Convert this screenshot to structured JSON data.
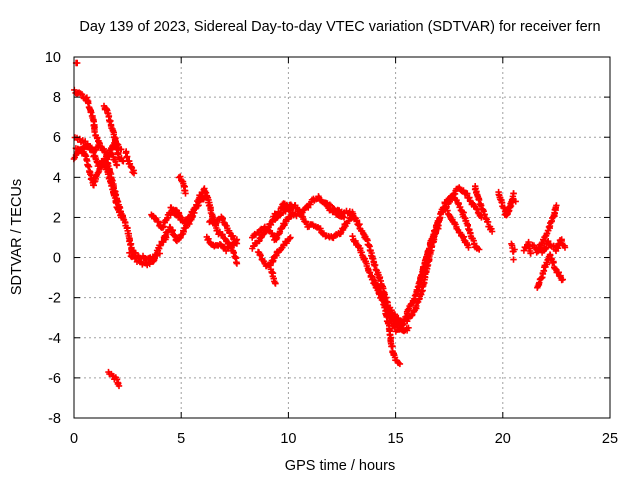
{
  "chart_data": {
    "type": "scatter",
    "title": "Day 139 of 2023, Sidereal Day-to-day VTEC variation (SDTVAR) for receiver fern",
    "xlabel": "GPS time / hours",
    "ylabel": "SDTVAR / TECUs",
    "xlim": [
      0,
      25
    ],
    "ylim": [
      -8,
      10
    ],
    "xticks": [
      0,
      5,
      10,
      15,
      20,
      25
    ],
    "yticks": [
      -8,
      -6,
      -4,
      -2,
      0,
      2,
      4,
      6,
      8,
      10
    ],
    "grid": true,
    "marker": "+",
    "color": "#ff0000",
    "tracks": [
      [
        [
          0.0,
          5.0
        ],
        [
          0.3,
          5.4
        ],
        [
          0.6,
          5.6
        ],
        [
          0.9,
          5.3
        ],
        [
          1.2,
          5.6
        ],
        [
          1.5,
          5.2
        ],
        [
          1.8,
          5.1
        ],
        [
          2.0,
          4.6
        ]
      ],
      [
        [
          0.05,
          5.9
        ],
        [
          0.4,
          5.8
        ],
        [
          0.8,
          5.5
        ],
        [
          1.1,
          4.6
        ],
        [
          1.5,
          4.9
        ],
        [
          1.9,
          5.8
        ],
        [
          2.2,
          5.4
        ]
      ],
      [
        [
          0.1,
          5.4
        ],
        [
          0.5,
          5.2
        ],
        [
          0.7,
          4.4
        ],
        [
          0.9,
          3.6
        ],
        [
          1.1,
          4.2
        ],
        [
          1.4,
          4.8
        ],
        [
          1.7,
          3.8
        ],
        [
          2.0,
          2.6
        ],
        [
          2.2,
          2.0
        ]
      ],
      [
        [
          0.0,
          8.3
        ],
        [
          0.3,
          8.1
        ],
        [
          0.6,
          7.9
        ],
        [
          0.9,
          6.9
        ],
        [
          1.0,
          6.1
        ],
        [
          1.2,
          5.6
        ]
      ],
      [
        [
          1.4,
          7.6
        ],
        [
          1.6,
          7.1
        ],
        [
          1.9,
          6.0
        ],
        [
          2.1,
          5.0
        ],
        [
          2.3,
          4.8
        ]
      ],
      [
        [
          2.4,
          5.3
        ],
        [
          2.6,
          4.6
        ],
        [
          2.8,
          4.2
        ]
      ],
      [
        [
          1.5,
          5.0
        ],
        [
          1.7,
          4.2
        ],
        [
          1.9,
          3.3
        ],
        [
          2.1,
          2.6
        ],
        [
          2.3,
          2.0
        ],
        [
          2.5,
          1.4
        ],
        [
          2.6,
          0.8
        ],
        [
          2.7,
          0.4
        ],
        [
          2.9,
          0.1
        ],
        [
          3.2,
          0.0
        ],
        [
          3.5,
          -0.1
        ],
        [
          3.8,
          0.1
        ],
        [
          4.0,
          0.2
        ]
      ],
      [
        [
          2.6,
          0.2
        ],
        [
          3.0,
          -0.2
        ],
        [
          3.4,
          -0.3
        ],
        [
          3.7,
          -0.2
        ],
        [
          4.0,
          0.6
        ],
        [
          4.3,
          1.0
        ]
      ],
      [
        [
          3.6,
          2.1
        ],
        [
          3.8,
          1.9
        ],
        [
          4.1,
          1.5
        ],
        [
          4.4,
          2.1
        ],
        [
          4.7,
          2.4
        ],
        [
          5.0,
          2.0
        ]
      ],
      [
        [
          4.2,
          1.0
        ],
        [
          4.5,
          1.5
        ],
        [
          4.8,
          0.8
        ],
        [
          5.1,
          1.3
        ],
        [
          5.4,
          1.8
        ],
        [
          5.6,
          2.3
        ],
        [
          5.9,
          2.8
        ],
        [
          6.1,
          3.0
        ]
      ],
      [
        [
          4.9,
          4.0
        ],
        [
          5.1,
          3.8
        ],
        [
          5.2,
          3.2
        ]
      ],
      [
        [
          4.5,
          2.5
        ],
        [
          4.9,
          2.0
        ],
        [
          5.2,
          1.8
        ],
        [
          5.6,
          2.4
        ],
        [
          5.9,
          3.1
        ],
        [
          6.1,
          3.4
        ],
        [
          6.3,
          2.7
        ],
        [
          6.5,
          1.9
        ],
        [
          6.7,
          1.3
        ],
        [
          7.0,
          1.0
        ],
        [
          7.3,
          0.6
        ],
        [
          7.5,
          0.1
        ],
        [
          7.6,
          -0.3
        ]
      ],
      [
        [
          6.3,
          1.8
        ],
        [
          6.6,
          1.7
        ],
        [
          6.9,
          2.0
        ],
        [
          7.1,
          1.5
        ],
        [
          7.4,
          1.0
        ],
        [
          7.6,
          0.7
        ]
      ],
      [
        [
          6.2,
          1.0
        ],
        [
          6.5,
          0.6
        ],
        [
          6.8,
          0.7
        ],
        [
          7.1,
          0.4
        ],
        [
          7.4,
          0.7
        ],
        [
          7.6,
          0.9
        ]
      ],
      [
        [
          1.6,
          -5.8
        ],
        [
          1.8,
          -5.9
        ],
        [
          2.0,
          -6.1
        ],
        [
          2.1,
          -6.4
        ]
      ],
      [
        [
          8.3,
          0.5
        ],
        [
          8.6,
          0.8
        ],
        [
          8.9,
          1.3
        ],
        [
          9.2,
          1.7
        ],
        [
          9.5,
          2.1
        ],
        [
          9.8,
          2.3
        ],
        [
          10.1,
          2.6
        ],
        [
          10.4,
          2.5
        ],
        [
          10.6,
          2.1
        ],
        [
          10.9,
          1.6
        ],
        [
          11.2,
          1.6
        ],
        [
          11.5,
          1.4
        ],
        [
          11.8,
          1.0
        ],
        [
          12.1,
          1.0
        ],
        [
          12.4,
          1.2
        ],
        [
          12.7,
          1.7
        ],
        [
          13.0,
          2.0
        ]
      ],
      [
        [
          8.3,
          1.0
        ],
        [
          8.6,
          1.2
        ],
        [
          8.9,
          1.5
        ],
        [
          9.2,
          1.2
        ],
        [
          9.4,
          0.9
        ],
        [
          9.6,
          1.3
        ],
        [
          9.9,
          1.9
        ],
        [
          10.2,
          2.2
        ],
        [
          10.5,
          2.1
        ],
        [
          10.8,
          2.4
        ],
        [
          11.1,
          2.8
        ],
        [
          11.4,
          3.0
        ],
        [
          11.7,
          2.7
        ],
        [
          12.0,
          2.3
        ],
        [
          12.3,
          2.2
        ],
        [
          12.6,
          2.0
        ]
      ],
      [
        [
          8.6,
          0.3
        ],
        [
          8.8,
          -0.2
        ],
        [
          9.0,
          -0.5
        ],
        [
          9.2,
          -0.3
        ],
        [
          9.5,
          0.3
        ],
        [
          9.8,
          0.7
        ],
        [
          10.1,
          1.0
        ]
      ],
      [
        [
          9.3,
          2.1
        ],
        [
          9.6,
          2.3
        ],
        [
          9.8,
          2.7
        ],
        [
          10.0,
          2.5
        ],
        [
          10.2,
          2.2
        ]
      ],
      [
        [
          9.2,
          -0.6
        ],
        [
          9.3,
          -1.0
        ],
        [
          9.4,
          -1.3
        ]
      ],
      [
        [
          11.7,
          2.8
        ],
        [
          12.0,
          2.5
        ],
        [
          12.3,
          2.3
        ],
        [
          12.7,
          2.3
        ],
        [
          13.0,
          2.2
        ],
        [
          13.3,
          1.6
        ],
        [
          13.6,
          1.0
        ],
        [
          13.8,
          0.4
        ],
        [
          14.0,
          -0.3
        ],
        [
          14.2,
          -0.9
        ],
        [
          14.4,
          -1.5
        ],
        [
          14.6,
          -2.2
        ],
        [
          14.8,
          -2.7
        ],
        [
          15.1,
          -3.0
        ],
        [
          15.3,
          -3.3
        ],
        [
          15.6,
          -3.1
        ],
        [
          15.9,
          -2.6
        ],
        [
          16.2,
          -1.8
        ],
        [
          16.4,
          -0.8
        ],
        [
          16.6,
          0.2
        ],
        [
          16.8,
          1.0
        ],
        [
          17.0,
          1.6
        ]
      ],
      [
        [
          13.0,
          1.0
        ],
        [
          13.3,
          0.5
        ],
        [
          13.6,
          -0.2
        ],
        [
          13.8,
          -0.8
        ],
        [
          14.1,
          -1.5
        ],
        [
          14.3,
          -2.0
        ],
        [
          14.6,
          -2.6
        ],
        [
          14.8,
          -3.2
        ],
        [
          15.0,
          -3.6
        ],
        [
          15.2,
          -3.6
        ],
        [
          15.4,
          -3.2
        ],
        [
          15.6,
          -2.6
        ],
        [
          15.8,
          -2.2
        ],
        [
          16.0,
          -1.7
        ],
        [
          16.2,
          -0.9
        ],
        [
          16.4,
          -0.2
        ],
        [
          16.6,
          0.6
        ],
        [
          16.8,
          1.2
        ],
        [
          17.0,
          1.9
        ],
        [
          17.2,
          2.3
        ],
        [
          17.5,
          2.8
        ],
        [
          17.8,
          3.3
        ],
        [
          18.0,
          3.5
        ],
        [
          18.3,
          3.2
        ],
        [
          18.6,
          2.6
        ],
        [
          18.8,
          2.4
        ],
        [
          19.0,
          2.0
        ]
      ],
      [
        [
          14.5,
          -2.5
        ],
        [
          14.7,
          -3.5
        ],
        [
          14.8,
          -4.3
        ],
        [
          14.9,
          -4.8
        ],
        [
          15.0,
          -5.1
        ],
        [
          15.2,
          -5.3
        ]
      ],
      [
        [
          14.0,
          -1.2
        ],
        [
          14.3,
          -1.8
        ],
        [
          14.5,
          -2.3
        ],
        [
          14.8,
          -2.8
        ],
        [
          15.1,
          -3.3
        ],
        [
          15.4,
          -3.7
        ],
        [
          15.6,
          -3.5
        ]
      ],
      [
        [
          16.1,
          -1.5
        ],
        [
          16.3,
          -0.6
        ],
        [
          16.5,
          0.2
        ],
        [
          16.7,
          0.9
        ],
        [
          16.9,
          1.4
        ],
        [
          17.1,
          2.1
        ],
        [
          17.3,
          2.7
        ],
        [
          17.6,
          3.1
        ],
        [
          17.9,
          2.8
        ],
        [
          18.1,
          2.3
        ],
        [
          18.3,
          1.8
        ],
        [
          18.5,
          1.2
        ],
        [
          18.7,
          0.6
        ],
        [
          18.9,
          0.4
        ]
      ],
      [
        [
          17.3,
          2.5
        ],
        [
          17.6,
          2.0
        ],
        [
          17.9,
          1.4
        ],
        [
          18.2,
          0.9
        ],
        [
          18.4,
          0.5
        ]
      ],
      [
        [
          18.7,
          3.5
        ],
        [
          18.9,
          2.8
        ],
        [
          19.1,
          2.3
        ],
        [
          19.3,
          1.7
        ],
        [
          19.5,
          1.3
        ]
      ],
      [
        [
          19.8,
          3.3
        ],
        [
          20.0,
          2.6
        ],
        [
          20.2,
          2.1
        ],
        [
          20.4,
          2.7
        ],
        [
          20.5,
          3.2
        ]
      ],
      [
        [
          20.1,
          2.1
        ],
        [
          20.3,
          2.5
        ],
        [
          20.5,
          2.9
        ]
      ],
      [
        [
          21.0,
          0.4
        ],
        [
          21.2,
          0.7
        ],
        [
          21.3,
          0.2
        ]
      ],
      [
        [
          20.4,
          0.6
        ],
        [
          20.5,
          0.3
        ]
      ],
      [
        [
          21.6,
          0.3
        ],
        [
          21.8,
          0.7
        ],
        [
          22.0,
          1.0
        ],
        [
          22.2,
          1.6
        ],
        [
          22.4,
          2.1
        ],
        [
          22.5,
          2.6
        ]
      ],
      [
        [
          21.6,
          -1.5
        ],
        [
          21.8,
          -1.0
        ],
        [
          22.0,
          -0.4
        ],
        [
          22.2,
          0.1
        ],
        [
          22.4,
          -0.4
        ],
        [
          22.6,
          -0.8
        ],
        [
          22.8,
          -1.1
        ]
      ],
      [
        [
          21.4,
          0.6
        ],
        [
          21.6,
          0.4
        ],
        [
          21.9,
          0.3
        ],
        [
          22.1,
          0.8
        ],
        [
          22.3,
          0.6
        ],
        [
          22.5,
          0.4
        ],
        [
          22.7,
          0.9
        ],
        [
          22.9,
          0.5
        ]
      ]
    ],
    "points": [
      [
        0.1,
        9.7
      ],
      [
        0.15,
        9.7
      ],
      [
        20.6,
        2.8
      ],
      [
        20.5,
        -0.1
      ],
      [
        20.55,
        0.4
      ]
    ]
  }
}
